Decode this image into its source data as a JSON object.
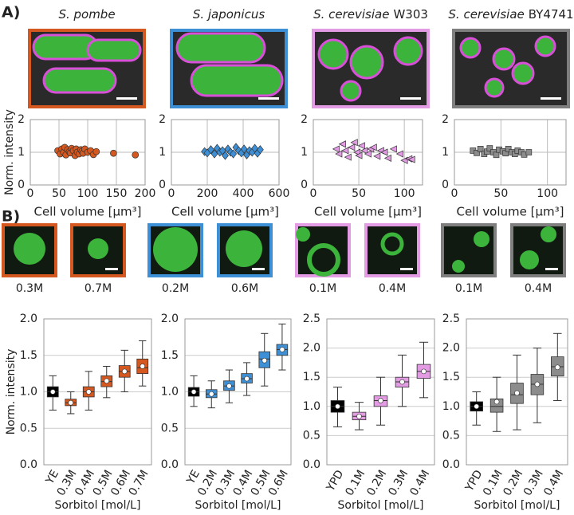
{
  "panel_a": {
    "label": "A)",
    "images": [
      {
        "species": "S. pombe"
      },
      {
        "species": "S. japonicus"
      },
      {
        "species": "S. cerevisiae",
        "strain": "W303"
      },
      {
        "species": "S. cerevisiae",
        "strain": "BY4741"
      }
    ]
  },
  "panel_b": {
    "label": "B)",
    "images": [
      "0.3M",
      "0.7M",
      "0.2M",
      "0.6M",
      "0.1M",
      "0.4M",
      "0.1M",
      "0.4M"
    ]
  },
  "chart_data": [
    {
      "type": "scatter",
      "marker": "circle",
      "color": "#d4581f",
      "ylabel": "Norm. intensity",
      "xlabel": "Cell volume [μm³]",
      "xlim": [
        0,
        200
      ],
      "xticks": [
        0,
        50,
        100,
        150,
        200
      ],
      "ylim": [
        0,
        2
      ],
      "yticks": [
        0,
        1,
        2
      ],
      "grid": true,
      "x": [
        48,
        52,
        55,
        58,
        60,
        62,
        65,
        68,
        70,
        72,
        75,
        78,
        80,
        82,
        85,
        88,
        90,
        92,
        95,
        100,
        105,
        110,
        115,
        145,
        183
      ],
      "y": [
        1.05,
        0.95,
        1.1,
        1.0,
        1.15,
        0.92,
        1.08,
        1.02,
        0.98,
        1.12,
        1.05,
        0.9,
        1.1,
        1.0,
        0.95,
        1.08,
        1.03,
        0.97,
        1.1,
        1.0,
        1.05,
        0.93,
        1.02,
        0.97,
        0.92
      ]
    },
    {
      "type": "scatter",
      "marker": "diamond",
      "color": "#3d8fd6",
      "xlabel": "Cell volume [μm³]",
      "xlim": [
        0,
        600
      ],
      "xticks": [
        0,
        200,
        400,
        600
      ],
      "ylim": [
        0,
        2
      ],
      "yticks": [
        0,
        1,
        2
      ],
      "grid": true,
      "x": [
        185,
        200,
        220,
        240,
        255,
        270,
        285,
        300,
        315,
        330,
        345,
        360,
        375,
        390,
        405,
        420,
        435,
        450,
        465,
        480,
        495
      ],
      "y": [
        1.02,
        0.98,
        1.08,
        0.95,
        1.12,
        1.0,
        1.05,
        0.9,
        1.1,
        1.0,
        0.95,
        1.15,
        1.05,
        0.98,
        1.1,
        0.92,
        1.05,
        1.0,
        1.12,
        0.97,
        1.08
      ]
    },
    {
      "type": "scatter",
      "marker": "triangle",
      "color": "#e39be3",
      "xlabel": "Cell volume [μm³]",
      "xlim": [
        0,
        120
      ],
      "xticks": [
        0,
        50,
        100
      ],
      "ylim": [
        0,
        2
      ],
      "yticks": [
        0,
        1,
        2
      ],
      "grid": true,
      "x": [
        25,
        28,
        32,
        35,
        38,
        42,
        45,
        48,
        50,
        53,
        56,
        60,
        63,
        66,
        70,
        74,
        78,
        82,
        88,
        95,
        100,
        105,
        108
      ],
      "y": [
        1.1,
        0.95,
        1.25,
        1.05,
        0.85,
        1.15,
        1.3,
        1.0,
        0.9,
        1.2,
        1.05,
        0.95,
        1.1,
        1.15,
        0.88,
        1.05,
        1.0,
        0.82,
        1.1,
        0.95,
        0.75,
        0.8,
        0.78
      ]
    },
    {
      "type": "scatter",
      "marker": "square",
      "color": "#8c8c8c",
      "xlabel": "Cell volume [μm³]",
      "xlim": [
        0,
        120
      ],
      "xticks": [
        0,
        50,
        100
      ],
      "ylim": [
        0,
        2
      ],
      "yticks": [
        0,
        1,
        2
      ],
      "grid": true,
      "x": [
        20,
        24,
        28,
        32,
        35,
        38,
        42,
        45,
        48,
        52,
        55,
        58,
        62,
        65,
        68,
        72,
        75,
        80
      ],
      "y": [
        1.05,
        0.98,
        1.1,
        0.95,
        1.02,
        1.12,
        1.0,
        0.92,
        1.08,
        1.03,
        0.97,
        1.1,
        1.0,
        0.95,
        1.05,
        1.0,
        0.93,
        1.0
      ]
    },
    {
      "type": "box",
      "ylabel": "Norm. intensity",
      "xlabel": "Sorbitol [mol/L]",
      "grid": true,
      "ylim": [
        0,
        2
      ],
      "yticks": [
        {
          "value": 0,
          "label": "0.0"
        },
        0.5,
        {
          "value": 1,
          "label": "1.0"
        },
        1.5,
        {
          "value": 2,
          "label": "2.0"
        }
      ],
      "categories": [
        "YE",
        "0.3M",
        "0.4M",
        "0.5M",
        "0.6M",
        "0.7M"
      ],
      "box_colors": [
        "#000000",
        "#d4581f",
        "#d4581f",
        "#d4581f",
        "#d4581f",
        "#d4581f"
      ],
      "boxes": [
        {
          "whislo": 0.75,
          "q1": 0.93,
          "med": 1.0,
          "q3": 1.07,
          "whishi": 1.22,
          "mean": 1.0
        },
        {
          "whislo": 0.7,
          "q1": 0.81,
          "med": 0.85,
          "q3": 0.9,
          "whishi": 1.0,
          "mean": 0.85
        },
        {
          "whislo": 0.75,
          "q1": 0.93,
          "med": 1.0,
          "q3": 1.07,
          "whishi": 1.28,
          "mean": 1.0
        },
        {
          "whislo": 0.92,
          "q1": 1.07,
          "med": 1.14,
          "q3": 1.22,
          "whishi": 1.35,
          "mean": 1.15
        },
        {
          "whislo": 1.0,
          "q1": 1.2,
          "med": 1.28,
          "q3": 1.36,
          "whishi": 1.57,
          "mean": 1.28
        },
        {
          "whislo": 1.08,
          "q1": 1.25,
          "med": 1.33,
          "q3": 1.45,
          "whishi": 1.7,
          "mean": 1.35
        }
      ]
    },
    {
      "type": "box",
      "xlabel": "Sorbitol [mol/L]",
      "grid": true,
      "ylim": [
        0,
        2
      ],
      "yticks": [
        {
          "value": 0,
          "label": "0.0"
        },
        0.5,
        {
          "value": 1,
          "label": "1.0"
        },
        1.5,
        {
          "value": 2,
          "label": "2.0"
        }
      ],
      "categories": [
        "YE",
        "0.2M",
        "0.3M",
        "0.4M",
        "0.5M",
        "0.6M"
      ],
      "box_colors": [
        "#000000",
        "#3d8fd6",
        "#3d8fd6",
        "#3d8fd6",
        "#3d8fd6",
        "#3d8fd6"
      ],
      "boxes": [
        {
          "whislo": 0.8,
          "q1": 0.94,
          "med": 1.0,
          "q3": 1.06,
          "whishi": 1.22,
          "mean": 1.0
        },
        {
          "whislo": 0.78,
          "q1": 0.92,
          "med": 0.97,
          "q3": 1.03,
          "whishi": 1.15,
          "mean": 0.97
        },
        {
          "whislo": 0.85,
          "q1": 1.02,
          "med": 1.08,
          "q3": 1.15,
          "whishi": 1.3,
          "mean": 1.08
        },
        {
          "whislo": 0.95,
          "q1": 1.12,
          "med": 1.18,
          "q3": 1.25,
          "whishi": 1.4,
          "mean": 1.18
        },
        {
          "whislo": 1.08,
          "q1": 1.33,
          "med": 1.45,
          "q3": 1.55,
          "whishi": 1.8,
          "mean": 1.43
        },
        {
          "whislo": 1.3,
          "q1": 1.5,
          "med": 1.58,
          "q3": 1.65,
          "whishi": 1.93,
          "mean": 1.58
        }
      ]
    },
    {
      "type": "box",
      "xlabel": "Sorbitol [mol/L]",
      "grid": true,
      "ylim": [
        0,
        2.5
      ],
      "yticks": [
        {
          "value": 0,
          "label": "0.0"
        },
        0.5,
        {
          "value": 1,
          "label": "1.0"
        },
        1.5,
        {
          "value": 2,
          "label": "2.0"
        },
        2.5
      ],
      "categories": [
        "YPD",
        "0.1M",
        "0.2M",
        "0.3M",
        "0.4M"
      ],
      "box_colors": [
        "#000000",
        "#e39be3",
        "#e39be3",
        "#e39be3",
        "#e39be3"
      ],
      "boxes": [
        {
          "whislo": 0.65,
          "q1": 0.9,
          "med": 1.0,
          "q3": 1.1,
          "whishi": 1.33,
          "mean": 1.0
        },
        {
          "whislo": 0.6,
          "q1": 0.77,
          "med": 0.83,
          "q3": 0.9,
          "whishi": 1.07,
          "mean": 0.83
        },
        {
          "whislo": 0.68,
          "q1": 1.0,
          "med": 1.1,
          "q3": 1.18,
          "whishi": 1.5,
          "mean": 1.1
        },
        {
          "whislo": 1.0,
          "q1": 1.33,
          "med": 1.42,
          "q3": 1.5,
          "whishi": 1.88,
          "mean": 1.42
        },
        {
          "whislo": 1.15,
          "q1": 1.48,
          "med": 1.6,
          "q3": 1.72,
          "whishi": 2.1,
          "mean": 1.6
        }
      ]
    },
    {
      "type": "box",
      "xlabel": "Sorbitol [mol/L]",
      "grid": true,
      "ylim": [
        0,
        2.5
      ],
      "yticks": [
        {
          "value": 0,
          "label": "0.0"
        },
        0.5,
        {
          "value": 1,
          "label": "1.0"
        },
        1.5,
        {
          "value": 2,
          "label": "2.0"
        },
        2.5
      ],
      "categories": [
        "YPD",
        "0.1M",
        "0.2M",
        "0.3M",
        "0.4M"
      ],
      "box_colors": [
        "#000000",
        "#8c8c8c",
        "#8c8c8c",
        "#8c8c8c",
        "#8c8c8c"
      ],
      "boxes": [
        {
          "whislo": 0.68,
          "q1": 0.92,
          "med": 1.0,
          "q3": 1.08,
          "whishi": 1.25,
          "mean": 1.0
        },
        {
          "whislo": 0.57,
          "q1": 0.9,
          "med": 1.0,
          "q3": 1.13,
          "whishi": 1.5,
          "mean": 1.08
        },
        {
          "whislo": 0.6,
          "q1": 1.05,
          "med": 1.2,
          "q3": 1.4,
          "whishi": 1.88,
          "mean": 1.23
        },
        {
          "whislo": 0.72,
          "q1": 1.2,
          "med": 1.38,
          "q3": 1.55,
          "whishi": 2.0,
          "mean": 1.38
        },
        {
          "whislo": 1.1,
          "q1": 1.52,
          "med": 1.68,
          "q3": 1.85,
          "whishi": 2.25,
          "mean": 1.67
        }
      ]
    }
  ]
}
